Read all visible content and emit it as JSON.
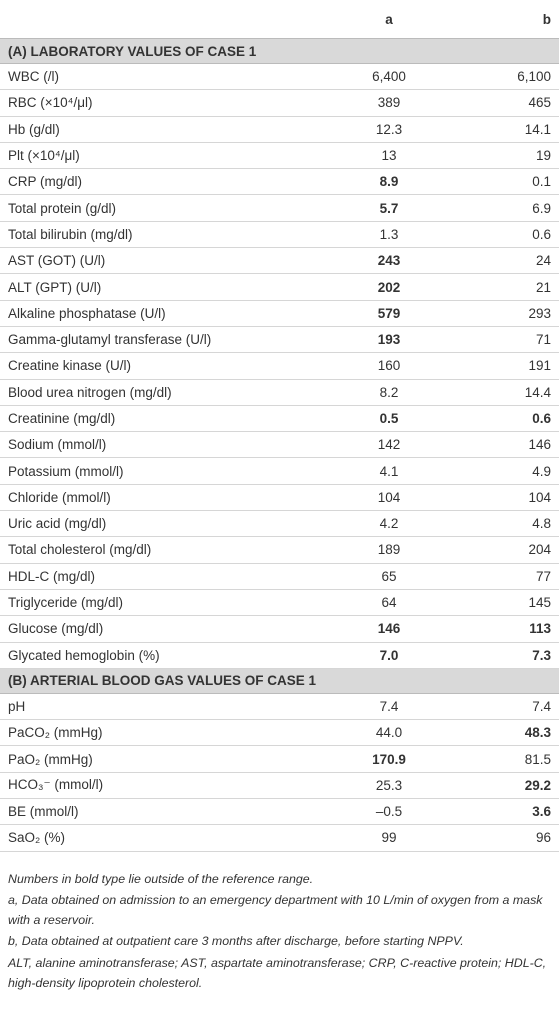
{
  "table": {
    "col_a": "a",
    "col_b": "b",
    "sections": [
      {
        "title": "(A) LABORATORY VALUES OF CASE 1",
        "rows": [
          {
            "cells": [
              "WBC (/l)",
              "6,400",
              "6,100"
            ]
          },
          {
            "cells": [
              "RBC (×10⁴/μl)",
              "389",
              "465"
            ]
          },
          {
            "cells": [
              "Hb (g/dl)",
              "12.3",
              "14.1"
            ]
          },
          {
            "cells": [
              "Plt (×10⁴/μl)",
              "13",
              "19"
            ]
          },
          {
            "cells": [
              "CRP (mg/dl)",
              "8.9",
              "0.1"
            ],
            "bold": [
              1
            ]
          },
          {
            "cells": [
              "Total protein (g/dl)",
              "5.7",
              "6.9"
            ],
            "bold": [
              1
            ]
          },
          {
            "cells": [
              "Total bilirubin (mg/dl)",
              "1.3",
              "0.6"
            ]
          },
          {
            "cells": [
              "AST (GOT) (U/l)",
              "243",
              "24"
            ],
            "bold": [
              1
            ]
          },
          {
            "cells": [
              "ALT (GPT) (U/l)",
              "202",
              "21"
            ],
            "bold": [
              1
            ]
          },
          {
            "cells": [
              "Alkaline phosphatase (U/l)",
              "579",
              "293"
            ],
            "bold": [
              1
            ]
          },
          {
            "cells": [
              "Gamma-glutamyl transferase (U/l)",
              "193",
              "71"
            ],
            "bold": [
              1
            ]
          },
          {
            "cells": [
              "Creatine kinase (U/l)",
              "160",
              "191"
            ]
          },
          {
            "cells": [
              "Blood urea nitrogen (mg/dl)",
              "8.2",
              "14.4"
            ]
          },
          {
            "cells": [
              "Creatinine (mg/dl)",
              "0.5",
              "0.6"
            ],
            "bold": [
              1,
              2
            ]
          },
          {
            "cells": [
              "Sodium (mmol/l)",
              "142",
              "146"
            ]
          },
          {
            "cells": [
              "Potassium (mmol/l)",
              "4.1",
              "4.9"
            ]
          },
          {
            "cells": [
              "Chloride (mmol/l)",
              "104",
              "104"
            ]
          },
          {
            "cells": [
              "Uric acid (mg/dl)",
              "4.2",
              "4.8"
            ]
          },
          {
            "cells": [
              "Total cholesterol (mg/dl)",
              "189",
              "204"
            ]
          },
          {
            "cells": [
              "HDL-C (mg/dl)",
              "65",
              "77"
            ]
          },
          {
            "cells": [
              "Triglyceride (mg/dl)",
              "64",
              "145"
            ]
          },
          {
            "cells": [
              "Glucose (mg/dl)",
              "146",
              "113"
            ],
            "bold": [
              1,
              2
            ]
          },
          {
            "cells": [
              "Glycated hemoglobin (%)",
              "7.0",
              "7.3"
            ],
            "bold": [
              1,
              2
            ]
          }
        ]
      },
      {
        "title": "(B) ARTERIAL BLOOD GAS VALUES OF CASE 1",
        "rows": [
          {
            "cells": [
              "pH",
              "7.4",
              "7.4"
            ]
          },
          {
            "cells": [
              "PaCO₂ (mmHg)",
              "44.0",
              "48.3"
            ],
            "bold": [
              2
            ]
          },
          {
            "cells": [
              "PaO₂ (mmHg)",
              "170.9",
              "81.5"
            ],
            "bold": [
              1
            ]
          },
          {
            "cells": [
              "HCO₃⁻ (mmol/l)",
              "25.3",
              "29.2"
            ],
            "bold": [
              2
            ]
          },
          {
            "cells": [
              "BE (mmol/l)",
              "–0.5",
              "3.6"
            ],
            "bold": [
              2
            ]
          },
          {
            "cells": [
              "SaO₂ (%)",
              "99",
              "96"
            ]
          }
        ]
      }
    ]
  },
  "notes": [
    "Numbers in bold type lie outside of the reference range.",
    "a, Data obtained on admission to an emergency department with 10 L/min of oxygen from a mask with a reservoir.",
    "b, Data obtained at outpatient care 3 months after discharge, before starting NPPV.",
    "ALT, alanine aminotransferase; AST, aspartate aminotransferase; CRP, C-reactive protein; HDL-C, high-density lipoprotein cholesterol."
  ]
}
